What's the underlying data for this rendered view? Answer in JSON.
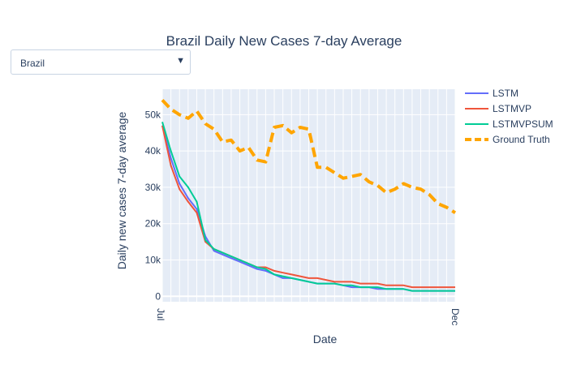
{
  "dropdown": {
    "selected": "Brazil"
  },
  "chart_data": {
    "type": "line",
    "title": "Brazil Daily New Cases 7-day Average",
    "xlabel": "Date",
    "ylabel": "Daily new cases 7-day average",
    "ylim": [
      -1500,
      57000
    ],
    "yticks": [
      0,
      10000,
      20000,
      30000,
      40000,
      50000
    ],
    "yticklabels": [
      "0",
      "10k",
      "20k",
      "30k",
      "40k",
      "50k"
    ],
    "x_start_label": "Jul",
    "x_end_label": "Dec",
    "grid": true,
    "legend_position": "right",
    "series": [
      {
        "name": "LSTM",
        "color": "#636efa",
        "dash": false,
        "values": [
          47000,
          38000,
          31000,
          27000,
          24000,
          16500,
          12500,
          11500,
          10500,
          9500,
          8500,
          7500,
          7000,
          6000,
          5000,
          5000,
          4500,
          4000,
          3500,
          3500,
          3500,
          3000,
          2500,
          2500,
          2500,
          2000,
          2000,
          2000,
          2000,
          1500,
          1500,
          1500,
          1500,
          1500,
          1500
        ]
      },
      {
        "name": "LSTMVP",
        "color": "#ef553b",
        "dash": false,
        "values": [
          47000,
          36000,
          29500,
          26000,
          23000,
          15000,
          13000,
          12000,
          11000,
          10000,
          9000,
          8000,
          8000,
          7000,
          6500,
          6000,
          5500,
          5000,
          5000,
          4500,
          4000,
          4000,
          4000,
          3500,
          3500,
          3500,
          3000,
          3000,
          3000,
          2500,
          2500,
          2500,
          2500,
          2500,
          2500
        ]
      },
      {
        "name": "LSTMVPSUM",
        "color": "#00cc96",
        "dash": false,
        "values": [
          48000,
          40000,
          33000,
          30000,
          26000,
          15500,
          13000,
          12000,
          11000,
          10000,
          9000,
          8000,
          7500,
          6000,
          5500,
          5000,
          4500,
          4000,
          3500,
          3500,
          3500,
          3000,
          3000,
          2500,
          2500,
          2500,
          2000,
          2000,
          2000,
          1500,
          1500,
          1500,
          1500,
          1500,
          1500
        ]
      },
      {
        "name": "Ground Truth",
        "color": "#ffa500",
        "dash": true,
        "values": [
          54000,
          51500,
          50000,
          49000,
          51000,
          47500,
          46000,
          42500,
          43000,
          40000,
          41000,
          37500,
          37000,
          46500,
          47000,
          45000,
          46500,
          46000,
          35500,
          35500,
          34000,
          32500,
          33000,
          33500,
          31500,
          30500,
          28500,
          29500,
          31000,
          30000,
          29500,
          28000,
          25500,
          24500,
          23000
        ]
      }
    ]
  }
}
